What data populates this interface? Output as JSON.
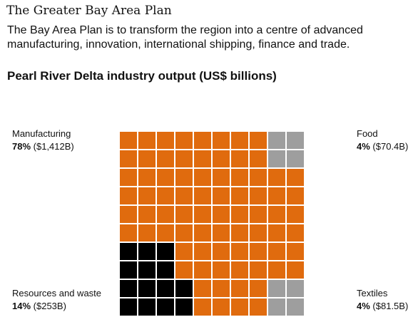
{
  "header": {
    "title": "The Greater Bay Area Plan",
    "subtitle": "The Bay Area Plan is to transform the region into a centre of advanced manufacturing, innovation, international shipping, finance and trade."
  },
  "chart_data": {
    "type": "waffle",
    "title": "Pearl River Delta industry output (US$ billions)",
    "grid": {
      "rows": 10,
      "cols": 10
    },
    "series": [
      {
        "name": "Manufacturing",
        "percent": 78,
        "pct_label": "78%",
        "value_label": "($1,412B)",
        "value": 1412,
        "color": "#e06b0e",
        "cells": 78
      },
      {
        "name": "Resources and waste",
        "percent": 14,
        "pct_label": "14%",
        "value_label": "($253B)",
        "value": 253,
        "color": "#000000",
        "cells": 14
      },
      {
        "name": "Food",
        "percent": 4,
        "pct_label": "4%",
        "value_label": "($70.4B)",
        "value": 70.4,
        "color": "#9e9e9e",
        "cells": 4
      },
      {
        "name": "Textiles",
        "percent": 4,
        "pct_label": "4%",
        "value_label": "($81.5B)",
        "value": 81.5,
        "color": "#9e9e9e",
        "cells": 4
      }
    ],
    "legend_placement": "corner labels"
  }
}
